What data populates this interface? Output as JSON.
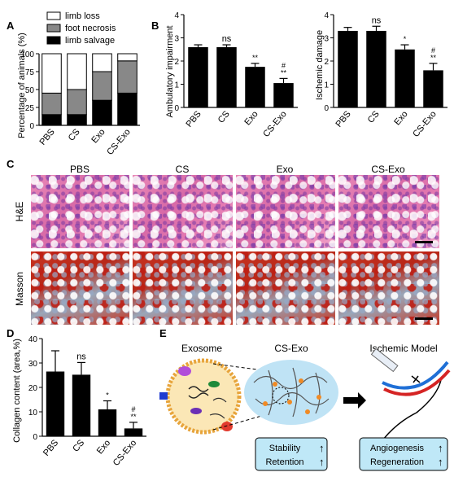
{
  "letters": {
    "a": "A",
    "b": "B",
    "c": "C",
    "d": "D",
    "e": "E"
  },
  "panel_a": {
    "ylabel": "Percentage of animals (%)",
    "yticks": [
      "0",
      "25",
      "50",
      "75",
      "100"
    ],
    "categories": [
      "PBS",
      "CS",
      "Exo",
      "CS-Exo"
    ],
    "legend": [
      "limb loss",
      "foot necrosis",
      "limb salvage"
    ]
  },
  "panel_b1": {
    "ylabel": "Ambulatory impairment",
    "yticks": [
      "0",
      "1",
      "2",
      "3",
      "4"
    ],
    "categories": [
      "PBS",
      "CS",
      "Exo",
      "CS-Exo"
    ],
    "annotations": [
      "",
      "ns",
      "**",
      "#\n**"
    ]
  },
  "panel_b2": {
    "ylabel": "Ischemic damage",
    "yticks": [
      "0",
      "1",
      "2",
      "3",
      "4"
    ],
    "categories": [
      "PBS",
      "CS",
      "Exo",
      "CS-Exo"
    ],
    "annotations": [
      "",
      "ns",
      "*",
      "#\n**"
    ]
  },
  "panel_c": {
    "columns": [
      "PBS",
      "CS",
      "Exo",
      "CS-Exo"
    ],
    "rows": [
      "H&E",
      "Masson"
    ]
  },
  "panel_d": {
    "ylabel": "Collagen content (area,%)",
    "yticks": [
      "0",
      "10",
      "20",
      "30",
      "40"
    ],
    "categories": [
      "PBS",
      "CS",
      "Exo",
      "CS-Exo"
    ],
    "annotations": [
      "",
      "ns",
      "*",
      "#\n**"
    ]
  },
  "panel_e": {
    "exosome": "Exosome",
    "csexo": "CS-Exo",
    "model": "Ischemic Model",
    "box1": [
      "Stability",
      "Retention"
    ],
    "box2": [
      "Angiogenesis",
      "Regeneration"
    ],
    "arrow": "↑"
  },
  "chart_data": [
    {
      "type": "bar",
      "stacked": true,
      "categories": [
        "PBS",
        "CS",
        "Exo",
        "CS-Exo"
      ],
      "series": [
        {
          "name": "limb salvage",
          "values": [
            15,
            15,
            35,
            45
          ]
        },
        {
          "name": "foot necrosis",
          "values": [
            30,
            35,
            40,
            45
          ]
        },
        {
          "name": "limb loss",
          "values": [
            55,
            50,
            25,
            10
          ]
        }
      ],
      "ylabel": "Percentage of animals (%)",
      "ylim": [
        0,
        100
      ]
    },
    {
      "type": "bar",
      "categories": [
        "PBS",
        "CS",
        "Exo",
        "CS-Exo"
      ],
      "values": [
        2.6,
        2.6,
        1.75,
        1.05
      ],
      "errors": [
        0.1,
        0.1,
        0.15,
        0.2
      ],
      "ylabel": "Ambulatory impairment",
      "ylim": [
        0,
        4
      ]
    },
    {
      "type": "bar",
      "categories": [
        "PBS",
        "CS",
        "Exo",
        "CS-Exo"
      ],
      "values": [
        3.3,
        3.3,
        2.5,
        1.6
      ],
      "errors": [
        0.15,
        0.2,
        0.2,
        0.3
      ],
      "ylabel": "Ischemic damage",
      "ylim": [
        0,
        4
      ]
    },
    {
      "type": "bar",
      "categories": [
        "PBS",
        "CS",
        "Exo",
        "CS-Exo"
      ],
      "values": [
        26.5,
        25.2,
        11,
        3.2
      ],
      "errors": [
        8.5,
        5,
        3.5,
        2.5
      ],
      "ylabel": "Collagen content (area,%)",
      "ylim": [
        0,
        40
      ]
    }
  ]
}
